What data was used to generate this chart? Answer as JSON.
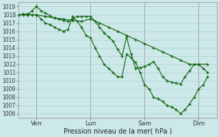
{
  "xlabel": "Pression niveau de la mer( hPa )",
  "bg_color": "#cce8e8",
  "grid_color": "#aacccc",
  "line_color": "#1a6b1a",
  "ylim": [
    1005.5,
    1019.5
  ],
  "yticks": [
    1006,
    1007,
    1008,
    1009,
    1010,
    1011,
    1012,
    1013,
    1014,
    1015,
    1016,
    1017,
    1018,
    1019
  ],
  "xtick_labels": [
    "Ven",
    "Lun",
    "Sam",
    "Dim"
  ],
  "xtick_positions": [
    24,
    96,
    168,
    240
  ],
  "xlim": [
    0,
    264
  ],
  "series": {
    "x1": [
      0,
      6,
      12,
      18,
      24,
      30,
      36,
      42,
      48,
      54,
      60,
      66,
      72,
      78,
      84,
      90,
      96,
      102,
      108,
      114,
      120,
      126,
      132,
      138,
      144,
      150,
      156,
      162,
      168,
      174,
      180,
      186,
      192,
      198,
      204,
      210,
      216,
      222,
      228,
      234,
      240,
      246,
      252
    ],
    "y1": [
      1018.0,
      1018.1,
      1018.0,
      1018.5,
      1019.0,
      1018.5,
      1018.2,
      1017.9,
      1017.6,
      1017.5,
      1017.3,
      1017.2,
      1017.5,
      1017.8,
      1017.8,
      1017.8,
      1017.8,
      1017.2,
      1016.5,
      1015.8,
      1015.3,
      1014.8,
      1013.8,
      1013.0,
      1015.3,
      1013.2,
      1011.5,
      1011.6,
      1011.7,
      1012.0,
      1012.3,
      1011.5,
      1010.5,
      1010.0,
      1009.8,
      1009.7,
      1009.6,
      1010.5,
      1011.2,
      1012.0,
      1012.0,
      1011.5,
      1011.0
    ],
    "x2": [
      0,
      12,
      24,
      36,
      48,
      60,
      72,
      84,
      96,
      108,
      120,
      132,
      144,
      156,
      168,
      180,
      192,
      204,
      216,
      228,
      240,
      252
    ],
    "y2": [
      1018.0,
      1018.0,
      1018.0,
      1017.8,
      1017.6,
      1017.5,
      1017.3,
      1017.2,
      1017.5,
      1017.0,
      1016.5,
      1016.0,
      1015.5,
      1015.0,
      1014.5,
      1014.0,
      1013.5,
      1013.0,
      1012.5,
      1012.0,
      1012.0,
      1012.0
    ],
    "x3": [
      0,
      6,
      12,
      18,
      24,
      30,
      36,
      42,
      48,
      54,
      60,
      66,
      72,
      78,
      84,
      90,
      96,
      102,
      108,
      114,
      120,
      126,
      132,
      138,
      144,
      150,
      156,
      162,
      168,
      174,
      180,
      186,
      192,
      198,
      204,
      210,
      216,
      222,
      228,
      234,
      240,
      246,
      252
    ],
    "y3": [
      1018.0,
      1018.0,
      1018.1,
      1018.0,
      1018.0,
      1017.5,
      1017.0,
      1016.8,
      1016.5,
      1016.2,
      1016.0,
      1016.2,
      1017.8,
      1017.2,
      1016.5,
      1015.5,
      1015.2,
      1014.0,
      1013.0,
      1012.0,
      1011.5,
      1011.0,
      1010.5,
      1010.5,
      1013.2,
      1012.8,
      1012.2,
      1011.0,
      1009.5,
      1009.0,
      1008.0,
      1007.8,
      1007.5,
      1007.0,
      1006.8,
      1006.5,
      1006.0,
      1006.5,
      1007.2,
      1008.0,
      1009.0,
      1009.5,
      1010.5
    ]
  }
}
